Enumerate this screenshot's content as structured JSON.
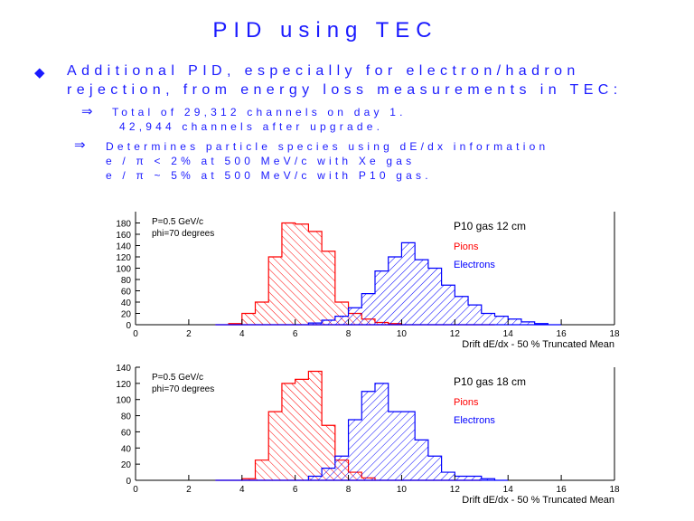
{
  "slide": {
    "title": "PID using TEC",
    "bullet": {
      "line1": "Additional PID, especially for electron/hadron",
      "line2": "rejection, from energy loss measurements in TEC:"
    },
    "sub1": {
      "line1": "Total of 29,312 channels on day 1.",
      "line2": "42,944 channels after upgrade."
    },
    "sub2": {
      "line1": "Determines particle species using dE/dx information",
      "line2": "e / π < 2% at 500 MeV/c with Xe gas",
      "line3": "e / π ~ 5% at 500 MeV/c with P10 gas."
    }
  },
  "colors": {
    "text": "#1a1aff",
    "pions": "#ff0000",
    "electrons": "#0000ff",
    "axis": "#000000"
  },
  "chart_data": [
    {
      "type": "histogram",
      "title": "P10 gas 12 cm",
      "info_lines": [
        "P=0.5 GeV/c",
        "phi=70 degrees"
      ],
      "xlabel": "Drift dE/dx - 50 % Truncated Mean",
      "xlim": [
        0,
        18
      ],
      "ylim": [
        0,
        200
      ],
      "xticks": [
        "0",
        "2",
        "4",
        "6",
        "8",
        "10",
        "12",
        "14",
        "16",
        "18"
      ],
      "yticks": [
        "0",
        "20",
        "40",
        "60",
        "80",
        "100",
        "120",
        "140",
        "160",
        "180"
      ],
      "bin_start": 3.0,
      "bin_width": 0.5,
      "series": [
        {
          "name": "Pions",
          "color": "#ff0000",
          "values": [
            0,
            2,
            20,
            40,
            120,
            180,
            178,
            165,
            130,
            40,
            20,
            10,
            4,
            2,
            0,
            0,
            0,
            0,
            0,
            0,
            0
          ]
        },
        {
          "name": "Electrons",
          "color": "#0000ff",
          "values": [
            0,
            0,
            0,
            0,
            0,
            0,
            0,
            3,
            8,
            15,
            30,
            55,
            95,
            120,
            145,
            115,
            100,
            70,
            50,
            35,
            20,
            15,
            10,
            5,
            2,
            0
          ]
        }
      ]
    },
    {
      "type": "histogram",
      "title": "P10 gas 18 cm",
      "info_lines": [
        "P=0.5 GeV/c",
        "phi=70 degrees"
      ],
      "xlabel": "Drift dE/dx - 50 % Truncated Mean",
      "xlim": [
        0,
        18
      ],
      "ylim": [
        0,
        140
      ],
      "xticks": [
        "0",
        "2",
        "4",
        "6",
        "8",
        "10",
        "12",
        "14",
        "16",
        "18"
      ],
      "yticks": [
        "0",
        "20",
        "40",
        "60",
        "80",
        "100",
        "120",
        "140"
      ],
      "bin_start": 3.0,
      "bin_width": 0.5,
      "series": [
        {
          "name": "Pions",
          "color": "#ff0000",
          "values": [
            0,
            0,
            2,
            25,
            85,
            120,
            125,
            135,
            68,
            25,
            10,
            3,
            0,
            0,
            0,
            0,
            0,
            0,
            0,
            0
          ]
        },
        {
          "name": "Electrons",
          "color": "#0000ff",
          "values": [
            0,
            0,
            0,
            0,
            0,
            0,
            0,
            5,
            15,
            30,
            75,
            110,
            120,
            85,
            85,
            50,
            30,
            10,
            5,
            5,
            2,
            0
          ]
        }
      ]
    }
  ]
}
